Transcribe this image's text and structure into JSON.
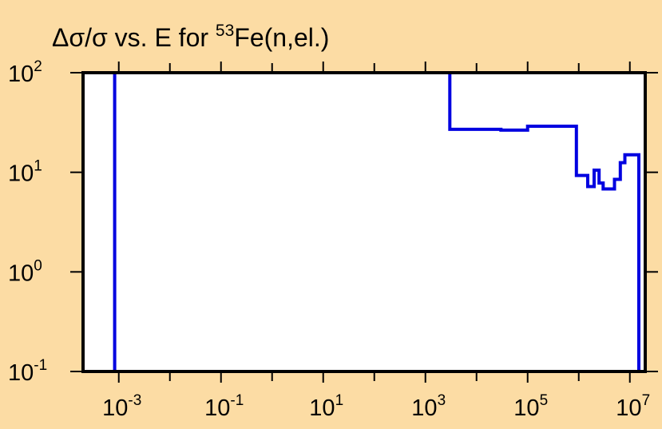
{
  "colors": {
    "background": "#FCDCA4",
    "plot_area": "#FFFFFF",
    "series": "#0000E0",
    "axis": "#000000"
  },
  "chart_data": {
    "type": "line",
    "title": {
      "prefix": "Δσ/σ vs. E for ",
      "isotope_mass": "53",
      "suffix": "Fe(n,el.)"
    },
    "xlabel": "",
    "ylabel": "",
    "x_scale": "log",
    "y_scale": "log",
    "xlim": [
      0.0002,
      20000000
    ],
    "ylim": [
      0.1,
      100
    ],
    "grid": false,
    "x_ticks": [
      {
        "value": 0.001,
        "base": "10",
        "exp": "-3"
      },
      {
        "value": 0.1,
        "base": "10",
        "exp": "-1"
      },
      {
        "value": 10,
        "base": "10",
        "exp": "1"
      },
      {
        "value": 1000,
        "base": "10",
        "exp": "3"
      },
      {
        "value": 100000,
        "base": "10",
        "exp": "5"
      },
      {
        "value": 10000000,
        "base": "10",
        "exp": "7"
      }
    ],
    "x_minor_ticks": [
      0.01,
      1,
      100,
      10000,
      1000000
    ],
    "y_ticks": [
      {
        "value": 0.1,
        "base": "10",
        "exp": "-1"
      },
      {
        "value": 1,
        "base": "10",
        "exp": "0"
      },
      {
        "value": 10,
        "base": "10",
        "exp": "1"
      },
      {
        "value": 100,
        "base": "10",
        "exp": "2"
      }
    ],
    "series": [
      {
        "style": "step",
        "x": [
          0.00083,
          0.00083,
          3000,
          3000,
          30000,
          30000,
          100000,
          100000,
          900000,
          900000,
          1500000,
          1500000,
          2000000,
          2000000,
          2500000,
          2500000,
          3000000,
          3000000,
          5000000,
          5000000,
          6500000,
          6500000,
          8000000,
          8000000,
          15000000,
          15000000
        ],
        "y": [
          0.1,
          100,
          100,
          27,
          27,
          26.5,
          26.5,
          29,
          29,
          9.3,
          9.3,
          7.2,
          7.2,
          10.5,
          10.5,
          7.8,
          7.8,
          6.8,
          6.8,
          8.5,
          8.5,
          12.5,
          12.5,
          15,
          15,
          0.1
        ]
      }
    ]
  }
}
